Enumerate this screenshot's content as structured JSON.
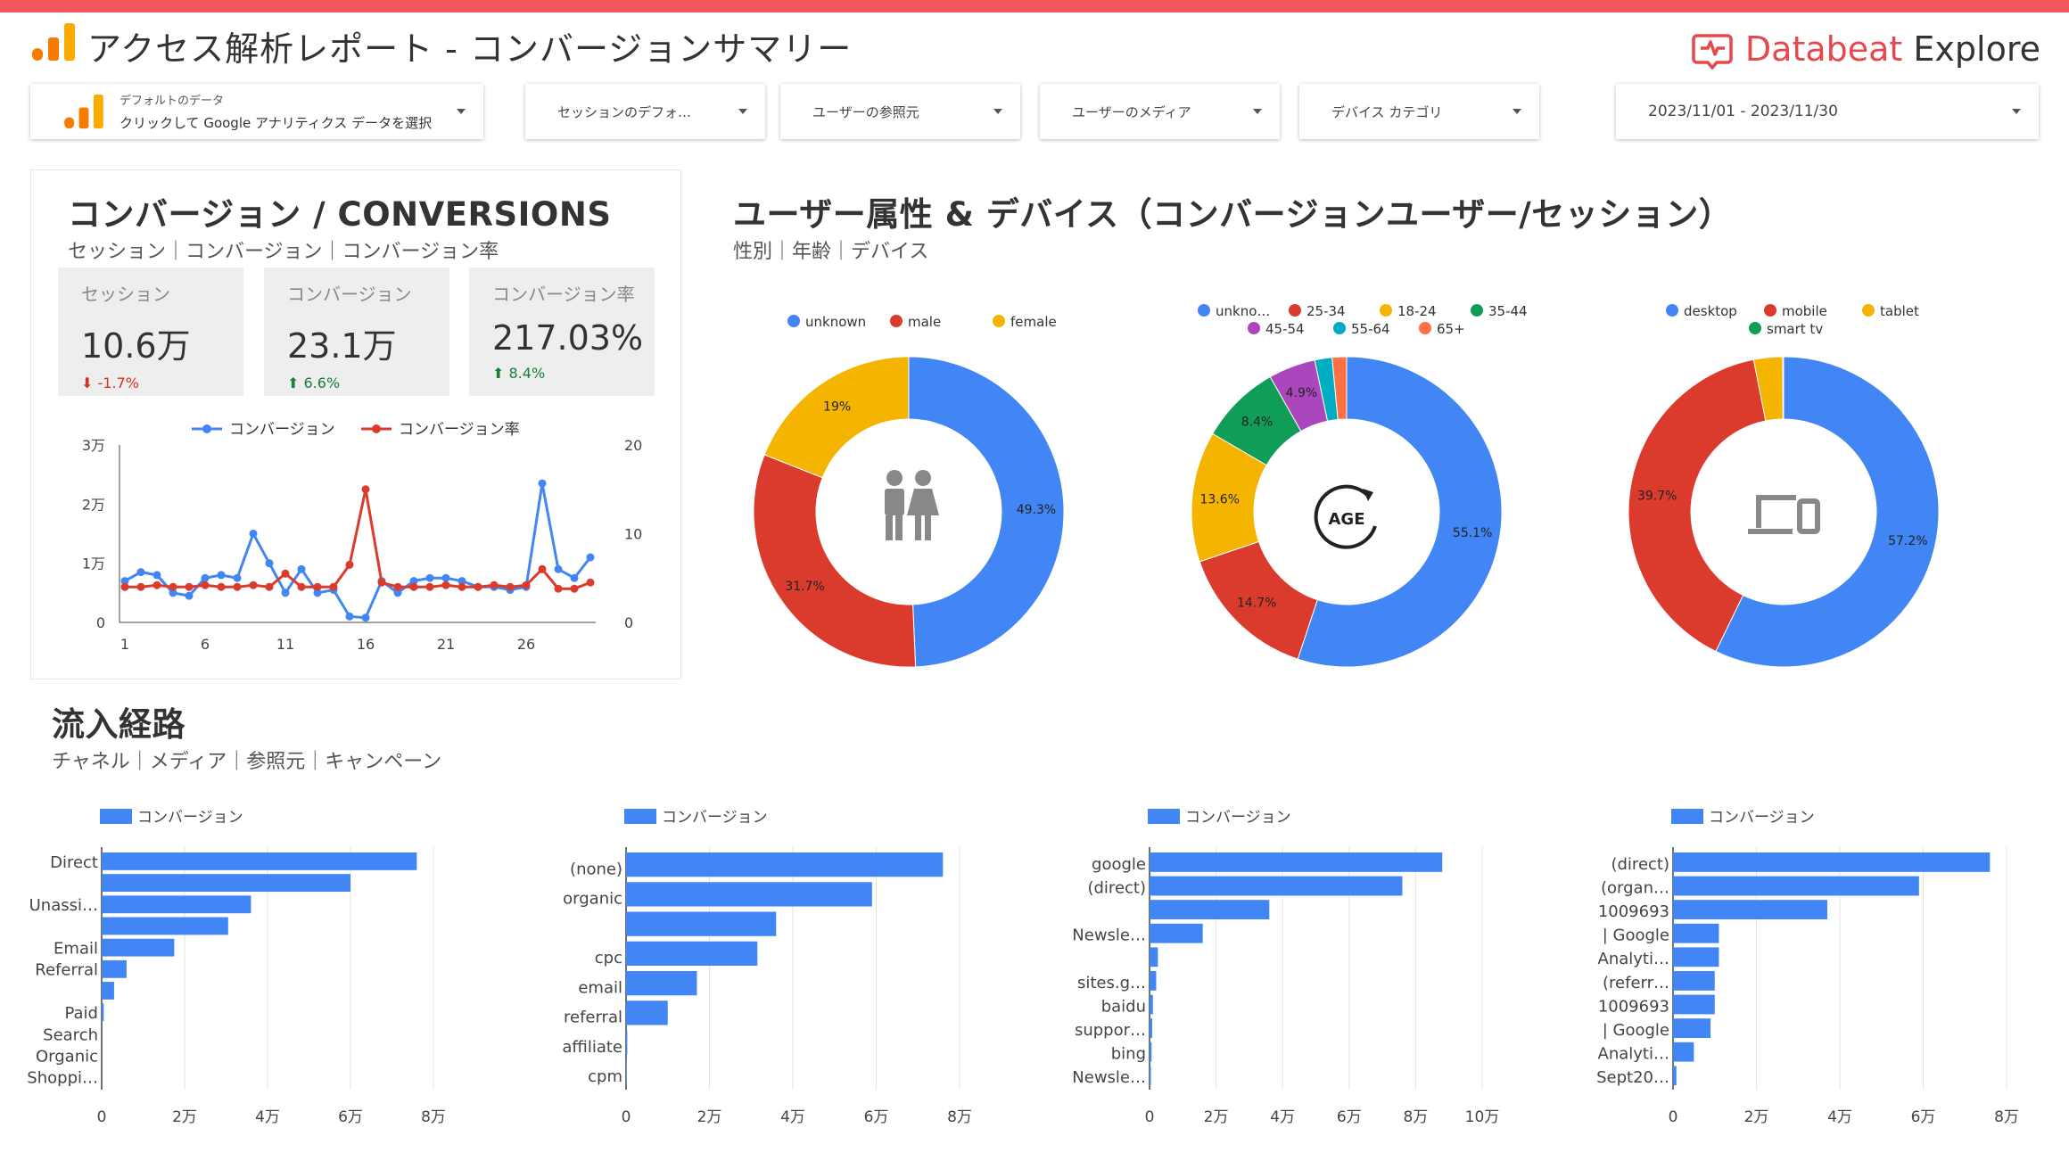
{
  "header": {
    "title": "アクセス解析レポート - コンバージョンサマリー",
    "brand_name": "Databeat",
    "brand_suffix": "Explore"
  },
  "controls": {
    "datasource": {
      "line1": "デフォルトのデータ",
      "line2": "クリックして Google アナリティクス データを選択"
    },
    "session_default": "セッションのデフォ…",
    "user_source": "ユーザーの参照元",
    "user_medium": "ユーザーのメディア",
    "device_category": "デバイス カテゴリ",
    "date_range": "2023/11/01 - 2023/11/30"
  },
  "conversions": {
    "title": "コンバージョン / CONVERSIONS",
    "subtitle": "セッション｜コンバージョン｜コンバージョン率",
    "kpis": [
      {
        "label": "セッション",
        "value": "10.6万",
        "delta": "-1.7%",
        "direction": "down"
      },
      {
        "label": "コンバージョン",
        "value": "23.1万",
        "delta": "6.6%",
        "direction": "up"
      },
      {
        "label": "コンバージョン率",
        "value": "217.03%",
        "delta": "8.4%",
        "direction": "up"
      }
    ]
  },
  "demographics": {
    "title": "ユーザー属性 & デバイス（コンバージョンユーザー/セッション）",
    "subtitle": "性別｜年齢｜デバイス",
    "age_badge": "AGE"
  },
  "traffic": {
    "title": "流入経路",
    "subtitle": "チャネル｜メディア｜参照元｜キャンペーン"
  },
  "colors": {
    "accent": "#f0585c",
    "blue": "#4285f4",
    "red": "#db3b2c",
    "yellow": "#f4b400",
    "green": "#0f9d58",
    "purple": "#ab47bc",
    "teal": "#00acc1",
    "orange": "#ff7043"
  },
  "chart_data": [
    {
      "type": "line",
      "legend_position": "top",
      "series": [
        {
          "name": "コンバージョン",
          "axis": "left",
          "color": "#4285f4",
          "values": [
            7000,
            8500,
            8000,
            5000,
            4500,
            7500,
            8000,
            7500,
            15000,
            10000,
            5000,
            9000,
            5000,
            5500,
            1000,
            800,
            7000,
            5000,
            7000,
            7500,
            7500,
            7000,
            6000,
            6000,
            5500,
            6000,
            23500,
            9000,
            7500,
            11000
          ]
        },
        {
          "name": "コンバージョン率",
          "axis": "right",
          "color": "#db3b2c",
          "values": [
            4,
            4,
            4.2,
            4,
            4,
            4.2,
            4,
            4,
            4.2,
            4,
            5.5,
            4,
            4,
            4,
            6.5,
            15,
            4.5,
            4,
            4,
            4,
            4.2,
            4,
            4,
            4.2,
            4,
            4.2,
            6,
            3.8,
            3.8,
            4.5
          ]
        }
      ],
      "x": [
        1,
        2,
        3,
        4,
        5,
        6,
        7,
        8,
        9,
        10,
        11,
        12,
        13,
        14,
        15,
        16,
        17,
        18,
        19,
        20,
        21,
        22,
        23,
        24,
        25,
        26,
        27,
        28,
        29,
        30
      ],
      "x_ticks": [
        "1",
        "6",
        "11",
        "16",
        "21",
        "26"
      ],
      "y_left_ticks": [
        "0",
        "1万",
        "2万",
        "3万"
      ],
      "y_left_range": [
        0,
        30000
      ],
      "y_right_ticks": [
        "0",
        "10",
        "20"
      ],
      "y_right_range": [
        0,
        20
      ],
      "grid": false
    },
    {
      "type": "pie",
      "donut": true,
      "center_icon": "gender-icon",
      "legend_position": "top",
      "slices": [
        {
          "label": "unknown",
          "value": 49.3,
          "color": "#4285f4",
          "text": "49.3%"
        },
        {
          "label": "male",
          "value": 31.7,
          "color": "#db3b2c",
          "text": "31.7%"
        },
        {
          "label": "female",
          "value": 19.0,
          "color": "#f4b400",
          "text": "19%"
        }
      ]
    },
    {
      "type": "pie",
      "donut": true,
      "center_icon": "age-icon",
      "legend_position": "top",
      "slices": [
        {
          "label": "unkno…",
          "value": 55.1,
          "color": "#4285f4",
          "text": "55.1%"
        },
        {
          "label": "25-34",
          "value": 14.7,
          "color": "#db3b2c",
          "text": "14.7%"
        },
        {
          "label": "18-24",
          "value": 13.6,
          "color": "#f4b400",
          "text": "13.6%"
        },
        {
          "label": "35-44",
          "value": 8.4,
          "color": "#0f9d58",
          "text": "8.4%"
        },
        {
          "label": "45-54",
          "value": 4.9,
          "color": "#ab47bc",
          "text": "4.9%"
        },
        {
          "label": "55-64",
          "value": 1.8,
          "color": "#00acc1",
          "text": ""
        },
        {
          "label": "65+",
          "value": 1.5,
          "color": "#ff7043",
          "text": ""
        }
      ]
    },
    {
      "type": "pie",
      "donut": true,
      "center_icon": "device-icon",
      "legend_position": "top",
      "slices": [
        {
          "label": "desktop",
          "value": 57.2,
          "color": "#4285f4",
          "text": "57.2%"
        },
        {
          "label": "mobile",
          "value": 39.7,
          "color": "#db3b2c",
          "text": "39.7%"
        },
        {
          "label": "tablet",
          "value": 3.0,
          "color": "#f4b400",
          "text": ""
        },
        {
          "label": "smart tv",
          "value": 0.1,
          "color": "#0f9d58",
          "text": ""
        }
      ]
    },
    {
      "type": "bar",
      "orientation": "horizontal",
      "series_name": "コンバージョン",
      "color": "#4285f4",
      "categories": [
        "Direct",
        "",
        "Unassi…",
        "",
        "Email",
        "Referral",
        "",
        "Paid",
        "Search",
        "Organic",
        "Shoppi…"
      ],
      "values": [
        76000,
        60000,
        36000,
        30500,
        17500,
        6000,
        3000,
        500,
        0,
        0,
        0
      ],
      "x_ticks": [
        "0",
        "2万",
        "4万",
        "6万",
        "8万"
      ],
      "xlim": [
        0,
        80000
      ]
    },
    {
      "type": "bar",
      "orientation": "horizontal",
      "series_name": "コンバージョン",
      "color": "#4285f4",
      "categories": [
        "(none)",
        "organic",
        "",
        "cpc",
        "email",
        "referral",
        "affiliate",
        "cpm"
      ],
      "values": [
        76000,
        59000,
        36000,
        31500,
        17000,
        10000,
        300,
        100
      ],
      "x_ticks": [
        "0",
        "2万",
        "4万",
        "6万",
        "8万"
      ],
      "xlim": [
        0,
        80000
      ]
    },
    {
      "type": "bar",
      "orientation": "horizontal",
      "series_name": "コンバージョン",
      "color": "#4285f4",
      "categories": [
        "google",
        "(direct)",
        "",
        "Newsle…",
        "",
        "sites.g…",
        "baidu",
        "suppor…",
        "bing",
        "Newsle…"
      ],
      "values": [
        88000,
        76000,
        36000,
        16000,
        2500,
        2000,
        1000,
        800,
        600,
        400
      ],
      "x_ticks": [
        "0",
        "2万",
        "4万",
        "6万",
        "8万",
        "10万"
      ],
      "xlim": [
        0,
        100000
      ]
    },
    {
      "type": "bar",
      "orientation": "horizontal",
      "series_name": "コンバージョン",
      "color": "#4285f4",
      "categories": [
        "(direct)",
        "(organ…",
        "1009693",
        "| Google",
        "Analyti…",
        "(referr…",
        "1009693",
        "| Google",
        "Analyti…",
        "Sept20…"
      ],
      "values": [
        76000,
        59000,
        37000,
        11000,
        11000,
        10000,
        10000,
        9000,
        5000,
        800
      ],
      "x_ticks": [
        "0",
        "2万",
        "4万",
        "6万",
        "8万"
      ],
      "xlim": [
        0,
        80000
      ]
    }
  ]
}
